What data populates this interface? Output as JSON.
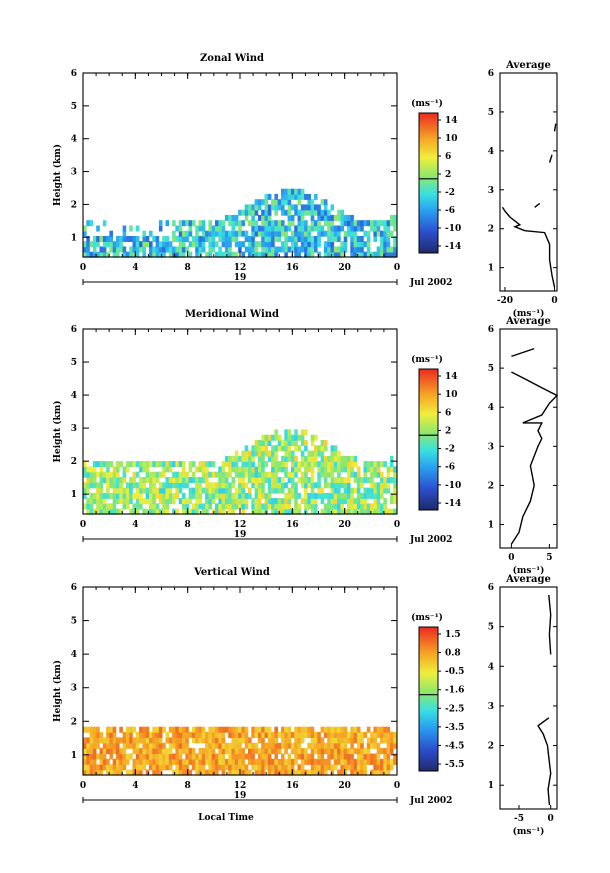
{
  "chart_data": [
    {
      "type": "heatmap",
      "title": "Zonal Wind",
      "ylabel": "Height (km)",
      "xticks": [
        "0",
        "4",
        "8",
        "12",
        "16",
        "20",
        "0"
      ],
      "yticks": [
        "1",
        "2",
        "3",
        "4",
        "5",
        "6"
      ],
      "ylim": [
        0.4,
        6
      ],
      "xlim": [
        0,
        24
      ],
      "date_day": "19",
      "date_label": "Jul 2002",
      "colorbar_unit": "(ms⁻¹)",
      "colorbar_ticks": [
        "14",
        "10",
        "6",
        "2",
        "-2",
        "-6",
        "-10",
        "-14"
      ],
      "colorbar_range": [
        -16,
        16
      ],
      "heat_top_km": 1.6,
      "heat_mean": -4,
      "profile": {
        "title": "Average",
        "xlabel": "(ms⁻¹)",
        "xticks": [
          "-20",
          "0"
        ],
        "xlim": [
          -22,
          1
        ],
        "yticks": [
          "1",
          "2",
          "3",
          "4",
          "5",
          "6"
        ],
        "ylim": [
          0.4,
          6
        ],
        "points": [
          [
            0,
            0.5
          ],
          [
            -1,
            0.8
          ],
          [
            -2,
            1.2
          ],
          [
            -2,
            1.6
          ],
          [
            -4,
            1.9
          ],
          [
            -12,
            1.95
          ],
          [
            -16,
            2.05
          ],
          [
            -14,
            2.1
          ],
          [
            -18,
            2.3
          ],
          [
            -20,
            2.45
          ],
          [
            -21,
            2.55
          ]
        ],
        "extra_segments": [
          [
            [
              -8,
              2.55
            ],
            [
              -6,
              2.65
            ]
          ],
          [
            [
              -2,
              3.7
            ],
            [
              -1,
              3.9
            ]
          ],
          [
            [
              0,
              4.5
            ],
            [
              0.5,
              4.7
            ]
          ]
        ]
      }
    },
    {
      "type": "heatmap",
      "title": "Meridional Wind",
      "ylabel": "Height (km)",
      "xticks": [
        "0",
        "4",
        "8",
        "12",
        "16",
        "20",
        "0"
      ],
      "yticks": [
        "1",
        "2",
        "3",
        "4",
        "5",
        "6"
      ],
      "ylim": [
        0.4,
        6
      ],
      "xlim": [
        0,
        24
      ],
      "date_day": "19",
      "date_label": "Jul 2002",
      "colorbar_unit": "(ms⁻¹)",
      "colorbar_ticks": [
        "14",
        "10",
        "6",
        "2",
        "-2",
        "-6",
        "-10",
        "-14"
      ],
      "colorbar_range": [
        -16,
        16
      ],
      "heat_top_km": 2.1,
      "heat_mean": 2,
      "profile": {
        "title": "Average",
        "xlabel": "(ms⁻¹)",
        "xticks": [
          "0",
          "5"
        ],
        "xlim": [
          -1.5,
          6
        ],
        "yticks": [
          "1",
          "2",
          "3",
          "4",
          "5",
          "6"
        ],
        "ylim": [
          0.4,
          6
        ],
        "points": [
          [
            0,
            0.5
          ],
          [
            1,
            0.8
          ],
          [
            1.5,
            1.2
          ],
          [
            2.5,
            1.6
          ],
          [
            3,
            2
          ],
          [
            2.5,
            2.5
          ],
          [
            3.5,
            3
          ],
          [
            4,
            3.2
          ],
          [
            3.5,
            3.4
          ],
          [
            4,
            3.6
          ],
          [
            1.5,
            3.6
          ],
          [
            4,
            3.8
          ],
          [
            5,
            4.1
          ],
          [
            6,
            4.3
          ],
          [
            4,
            4.5
          ],
          [
            2,
            4.7
          ],
          [
            0,
            4.9
          ]
        ],
        "extra_segments": [
          [
            [
              0,
              5.3
            ],
            [
              3,
              5.5
            ]
          ]
        ]
      }
    },
    {
      "type": "heatmap",
      "title": "Vertical Wind",
      "ylabel": "Height (km)",
      "xlabel": "Local Time",
      "xticks": [
        "0",
        "4",
        "8",
        "12",
        "16",
        "20",
        "0"
      ],
      "yticks": [
        "1",
        "2",
        "3",
        "4",
        "5",
        "6"
      ],
      "ylim": [
        0.4,
        6
      ],
      "xlim": [
        0,
        24
      ],
      "date_day": "19",
      "date_label": "Jul 2002",
      "colorbar_unit": "(ms⁻¹)",
      "colorbar_ticks": [
        "1.5",
        "0.8",
        "-0.5",
        "-1.6",
        "-2.5",
        "-3.5",
        "-4.5",
        "-5.5"
      ],
      "colorbar_range": [
        -6,
        2
      ],
      "heat_top_km": 1.8,
      "heat_mean": 0.5,
      "profile": {
        "title": "Average",
        "xlabel": "(ms⁻¹)",
        "xticks": [
          "-5",
          "0"
        ],
        "xlim": [
          -8,
          1
        ],
        "yticks": [
          "1",
          "2",
          "3",
          "4",
          "5",
          "6"
        ],
        "ylim": [
          0.4,
          6
        ],
        "points": [
          [
            -0.2,
            0.5
          ],
          [
            -0.4,
            0.9
          ],
          [
            0,
            1.3
          ],
          [
            -0.3,
            1.7
          ],
          [
            -0.5,
            2.0
          ],
          [
            -1.2,
            2.3
          ],
          [
            -2,
            2.5
          ],
          [
            -0.3,
            2.7
          ]
        ],
        "extra_segments": [
          [
            [
              0,
              4.3
            ],
            [
              -0.2,
              4.8
            ],
            [
              0,
              5.3
            ],
            [
              -0.3,
              5.8
            ]
          ]
        ]
      }
    }
  ]
}
